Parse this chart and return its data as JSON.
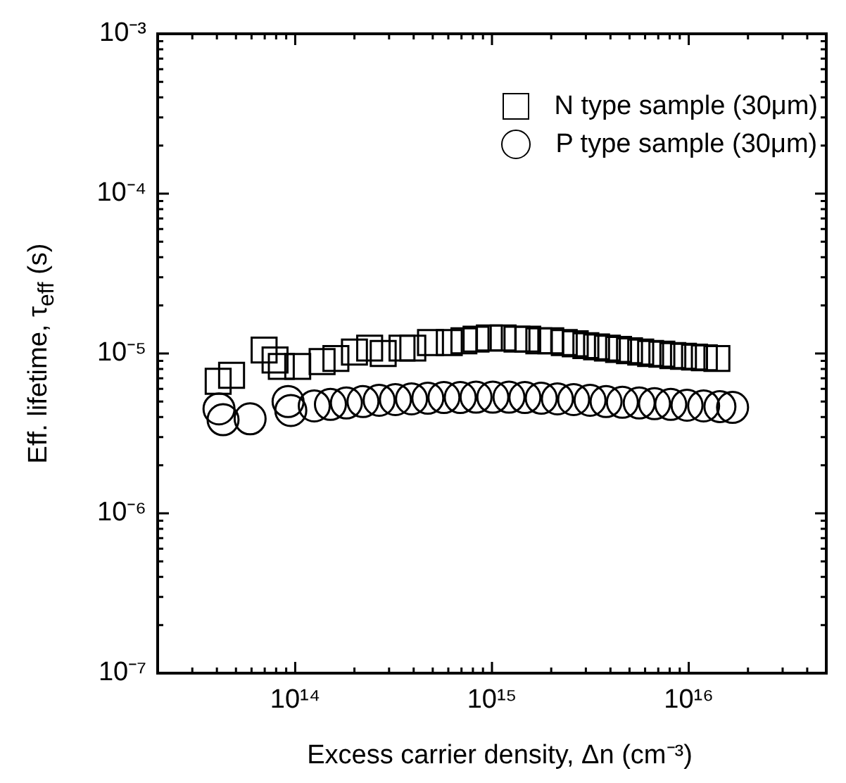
{
  "chart_data": {
    "type": "scatter",
    "xlabel": "Excess carrier density, Δn (cm⁻³)",
    "ylabel": "Eff. lifetime, τ$_{eff}$ (s)",
    "log": "xy",
    "grid": false,
    "legend": "top right",
    "xlim": [
      20000000000000.0,
      5e+16
    ],
    "xticks": [
      {
        "value": 20000000000000.0,
        "label": null
      },
      {
        "value": 30000000000000.0,
        "label": null
      },
      {
        "value": 40000000000000.0,
        "label": null
      },
      {
        "value": 50000000000000.0,
        "label": null
      },
      {
        "value": 60000000000000.0,
        "label": null
      },
      {
        "value": 70000000000000.0,
        "label": null
      },
      {
        "value": 80000000000000.0,
        "label": null
      },
      {
        "value": 90000000000000.0,
        "label": null
      },
      {
        "value": 100000000000000.0,
        "label": "10¹⁴"
      },
      {
        "value": 200000000000000.0,
        "label": null
      },
      {
        "value": 300000000000000.0,
        "label": null
      },
      {
        "value": 400000000000000.0,
        "label": null
      },
      {
        "value": 500000000000000.0,
        "label": null
      },
      {
        "value": 600000000000000.0,
        "label": null
      },
      {
        "value": 700000000000000.0,
        "label": null
      },
      {
        "value": 800000000000000.0,
        "label": null
      },
      {
        "value": 900000000000000.0,
        "label": null
      },
      {
        "value": 1000000000000000.0,
        "label": "10¹⁵"
      },
      {
        "value": 2000000000000000.0,
        "label": null
      },
      {
        "value": 3000000000000000.0,
        "label": null
      },
      {
        "value": 4000000000000000.0,
        "label": null
      },
      {
        "value": 5000000000000000.0,
        "label": null
      },
      {
        "value": 6000000000000000.0,
        "label": null
      },
      {
        "value": 7000000000000000.0,
        "label": null
      },
      {
        "value": 8000000000000000.0,
        "label": null
      },
      {
        "value": 9000000000000000.0,
        "label": null
      },
      {
        "value": 1e+16,
        "label": "10¹⁶"
      },
      {
        "value": 2e+16,
        "label": null
      },
      {
        "value": 3e+16,
        "label": null
      },
      {
        "value": 4e+16,
        "label": null
      }
    ],
    "ylim": [
      1e-07,
      0.001
    ],
    "yticks": [
      {
        "value": 1e-07,
        "label": "10⁻⁷"
      },
      {
        "value": 2e-07,
        "label": null
      },
      {
        "value": 3e-07,
        "label": null
      },
      {
        "value": 4e-07,
        "label": null
      },
      {
        "value": 5e-07,
        "label": null
      },
      {
        "value": 6e-07,
        "label": null
      },
      {
        "value": 7e-07,
        "label": null
      },
      {
        "value": 8e-07,
        "label": null
      },
      {
        "value": 9e-07,
        "label": null
      },
      {
        "value": 1e-06,
        "label": "10⁻⁶"
      },
      {
        "value": 2e-06,
        "label": null
      },
      {
        "value": 3e-06,
        "label": null
      },
      {
        "value": 4e-06,
        "label": null
      },
      {
        "value": 5e-06,
        "label": null
      },
      {
        "value": 6e-06,
        "label": null
      },
      {
        "value": 7e-06,
        "label": null
      },
      {
        "value": 8e-06,
        "label": null
      },
      {
        "value": 9e-06,
        "label": null
      },
      {
        "value": 1e-05,
        "label": "10⁻⁵"
      },
      {
        "value": 2e-05,
        "label": null
      },
      {
        "value": 3e-05,
        "label": null
      },
      {
        "value": 4e-05,
        "label": null
      },
      {
        "value": 5e-05,
        "label": null
      },
      {
        "value": 6e-05,
        "label": null
      },
      {
        "value": 7e-05,
        "label": null
      },
      {
        "value": 8e-05,
        "label": null
      },
      {
        "value": 9e-05,
        "label": null
      },
      {
        "value": 0.0001,
        "label": "10⁻⁴"
      },
      {
        "value": 0.0002,
        "label": null
      },
      {
        "value": 0.0003,
        "label": null
      },
      {
        "value": 0.0004,
        "label": null
      },
      {
        "value": 0.0005,
        "label": null
      },
      {
        "value": 0.0006,
        "label": null
      },
      {
        "value": 0.0007,
        "label": null
      },
      {
        "value": 0.0008,
        "label": null
      },
      {
        "value": 0.0009,
        "label": null
      },
      {
        "value": 0.001,
        "label": "10⁻³"
      }
    ],
    "series": [
      {
        "name": "N type sample (30μm)",
        "color": "#000000",
        "marker": "square",
        "x": [
          40600000000000.0,
          47500000000000.0,
          69500000000000.0,
          79000000000000.0,
          85000000000000.0,
          103000000000000.0,
          137000000000000.0,
          161000000000000.0,
          200000000000000.0,
          239000000000000.0,
          280000000000000.0,
          349000000000000.0,
          396000000000000.0,
          487000000000000.0,
          607000000000000.0,
          720000000000000.0,
          830000000000000.0,
          970000000000000.0,
          1140000000000000.0,
          1340000000000000.0,
          1520000000000000.0,
          1730000000000000.0,
          1990000000000000.0,
          2330000000000000.0,
          2650000000000000.0,
          3000000000000000.0,
          3400000000000000.0,
          3860000000000000.0,
          4400000000000000.0,
          5000000000000000.0,
          5700000000000000.0,
          6400000000000000.0,
          7300000000000000.0,
          8300000000000000.0,
          9400000000000000.0,
          1.07e+16,
          1.2e+16,
          1.39e+16
        ],
        "values": [
          6.7e-06,
          7.3e-06,
          1.05e-05,
          9.1e-06,
          8.3e-06,
          8.3e-06,
          8.9e-06,
          9.3e-06,
          1.02e-05,
          1.08e-05,
          1e-05,
          1.08e-05,
          1.08e-05,
          1.17e-05,
          1.17e-05,
          1.2e-05,
          1.23e-05,
          1.25e-05,
          1.25e-05,
          1.23e-05,
          1.23e-05,
          1.2e-05,
          1.2e-05,
          1.17e-05,
          1.15e-05,
          1.12e-05,
          1.1e-05,
          1.08e-05,
          1.06e-05,
          1.04e-05,
          1.02e-05,
          1e-05,
          9.9e-06,
          9.7e-06,
          9.6e-06,
          9.5e-06,
          9.4e-06,
          9.3e-06
        ]
      },
      {
        "name": "P type sample (30μm)",
        "color": "#000000",
        "marker": "circle",
        "x": [
          41000000000000.0,
          43000000000000.0,
          59000000000000.0,
          92000000000000.0,
          95000000000000.0,
          125000000000000.0,
          151000000000000.0,
          182000000000000.0,
          221000000000000.0,
          267000000000000.0,
          323000000000000.0,
          390000000000000.0,
          472000000000000.0,
          570000000000000.0,
          690000000000000.0,
          830000000000000.0,
          1010000000000000.0,
          1220000000000000.0,
          1470000000000000.0,
          1780000000000000.0,
          2150000000000000.0,
          2600000000000000.0,
          3150000000000000.0,
          3800000000000000.0,
          4600000000000000.0,
          5600000000000000.0,
          6700000000000000.0,
          8100000000000000.0,
          9800000000000000.0,
          1.19e+16,
          1.44e+16,
          1.67e+16
        ],
        "values": [
          4.5e-06,
          3.85e-06,
          3.9e-06,
          5e-06,
          4.4e-06,
          4.7e-06,
          4.8e-06,
          4.9e-06,
          5e-06,
          5.1e-06,
          5.15e-06,
          5.2e-06,
          5.25e-06,
          5.3e-06,
          5.3e-06,
          5.33e-06,
          5.33e-06,
          5.33e-06,
          5.3e-06,
          5.25e-06,
          5.2e-06,
          5.15e-06,
          5.1e-06,
          5e-06,
          4.95e-06,
          4.9e-06,
          4.85e-06,
          4.8e-06,
          4.75e-06,
          4.7e-06,
          4.65e-06,
          4.6e-06
        ]
      }
    ]
  }
}
